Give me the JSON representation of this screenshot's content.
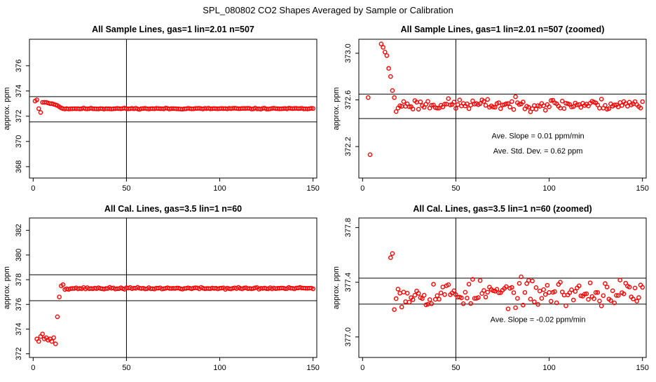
{
  "page_title": "SPL_080802  CO2 Shapes Averaged by Sample or Calibration",
  "chart_data": [
    {
      "type": "scatter",
      "title": "All Sample Lines, gas=1 lin=2.01 n=507",
      "xlabel": "",
      "ylabel": "approx. ppm",
      "xlim": [
        -2,
        152
      ],
      "ylim": [
        367.1,
        378.1
      ],
      "xticks": [
        "0",
        "50",
        "100",
        "150"
      ],
      "xtick_values": [
        0,
        50,
        100,
        150
      ],
      "yticks": [
        "368",
        "370",
        "372",
        "374",
        "376"
      ],
      "ytick_values": [
        368,
        370,
        372,
        374,
        376
      ],
      "hlines": [
        373.55,
        371.55
      ],
      "vline": 50,
      "marker_color": "#ff0000",
      "annotations": [],
      "seed": 11,
      "profile": {
        "kind": "sample",
        "early": [
          [
            1,
            373.2
          ],
          [
            2,
            373.3
          ],
          [
            3,
            372.6
          ],
          [
            4,
            372.3
          ],
          [
            5,
            373.1
          ],
          [
            6,
            373.1
          ],
          [
            7,
            373.1
          ],
          [
            8,
            373.05
          ],
          [
            9,
            373.0
          ],
          [
            10,
            373.0
          ],
          [
            11,
            372.95
          ],
          [
            12,
            372.9
          ],
          [
            13,
            372.85
          ],
          [
            14,
            372.75
          ],
          [
            15,
            372.65
          ],
          [
            16,
            372.6
          ]
        ],
        "base": 372.6,
        "noise": 0.04
      }
    },
    {
      "type": "scatter",
      "title": "All Sample Lines, gas=1 lin=2.01 n=507 (zoomed)",
      "xlabel": "",
      "ylabel": "approx. ppm",
      "xlim": [
        -2,
        152
      ],
      "ylim": [
        371.93,
        373.12
      ],
      "xticks": [
        "0",
        "50",
        "100",
        "150"
      ],
      "xtick_values": [
        0,
        50,
        100,
        150
      ],
      "yticks": [
        "372.2",
        "372.6",
        "373.0"
      ],
      "ytick_values": [
        372.2,
        372.6,
        373.0
      ],
      "hlines": [
        372.65,
        372.44
      ],
      "vline": 50,
      "marker_color": "#ff0000",
      "annotations": [
        {
          "text": "Ave. Slope =  0.01  ppm/min",
          "x": 94,
          "y": 372.27
        },
        {
          "text": "Ave. Std. Dev. =  0.62  ppm",
          "x": 94,
          "y": 372.14
        }
      ],
      "seed": 23,
      "profile": {
        "kind": "sample",
        "early": [
          [
            3,
            372.62
          ],
          [
            4,
            372.13
          ],
          [
            10,
            373.08
          ],
          [
            11,
            373.05
          ],
          [
            12,
            373.01
          ],
          [
            13,
            372.98
          ],
          [
            14,
            372.87
          ],
          [
            15,
            372.8
          ],
          [
            16,
            372.68
          ],
          [
            17,
            372.62
          ],
          [
            18,
            372.5
          ],
          [
            19,
            372.53
          ],
          [
            20,
            372.55
          ]
        ],
        "base": 372.56,
        "noise": 0.045
      }
    },
    {
      "type": "scatter",
      "title": "All Cal. Lines, gas=3.5 lin=1 n=60",
      "xlabel": "",
      "ylabel": "approx. ppm",
      "xlim": [
        -2,
        152
      ],
      "ylim": [
        371.7,
        383.0
      ],
      "xticks": [
        "0",
        "50",
        "100",
        "150"
      ],
      "xtick_values": [
        0,
        50,
        100,
        150
      ],
      "yticks": [
        "372",
        "374",
        "376",
        "378",
        "380",
        "382"
      ],
      "ytick_values": [
        372,
        374,
        376,
        378,
        380,
        382
      ],
      "hlines": [
        378.4,
        376.3
      ],
      "vline": 50,
      "marker_color": "#ff0000",
      "annotations": [],
      "seed": 37,
      "profile": {
        "kind": "cal",
        "early": [
          [
            2,
            373.2
          ],
          [
            3,
            373.0
          ],
          [
            4,
            373.4
          ],
          [
            5,
            373.6
          ],
          [
            6,
            373.2
          ],
          [
            7,
            373.3
          ],
          [
            8,
            373.1
          ],
          [
            9,
            373.2
          ],
          [
            10,
            373.0
          ],
          [
            11,
            373.3
          ],
          [
            12,
            372.8
          ],
          [
            13,
            375.0
          ],
          [
            14,
            376.6
          ],
          [
            15,
            377.5
          ],
          [
            16,
            377.6
          ],
          [
            17,
            377.2
          ]
        ],
        "base": 377.3,
        "noise": 0.07
      }
    },
    {
      "type": "scatter",
      "title": "All Cal. Lines, gas=3.5 lin=1 n=60 (zoomed)",
      "xlabel": "",
      "ylabel": "approx. ppm",
      "xlim": [
        -2,
        152
      ],
      "ylim": [
        376.85,
        377.87
      ],
      "xticks": [
        "0",
        "50",
        "100",
        "150"
      ],
      "xtick_values": [
        0,
        50,
        100,
        150
      ],
      "yticks": [
        "377.0",
        "377.4",
        "377.8"
      ],
      "ytick_values": [
        377.0,
        377.4,
        377.8
      ],
      "hlines": [
        377.43,
        377.24
      ],
      "vline": 50,
      "marker_color": "#ff0000",
      "annotations": [
        {
          "text": "Ave. Slope =  -0.02  ppm/min",
          "x": 94,
          "y": 377.11
        }
      ],
      "seed": 53,
      "profile": {
        "kind": "cal",
        "early": [
          [
            15,
            377.58
          ],
          [
            16,
            377.61
          ],
          [
            17,
            377.2
          ],
          [
            18,
            377.28
          ],
          [
            19,
            377.35
          ],
          [
            20,
            377.32
          ]
        ],
        "base": 377.32,
        "noise": 0.09
      }
    }
  ]
}
